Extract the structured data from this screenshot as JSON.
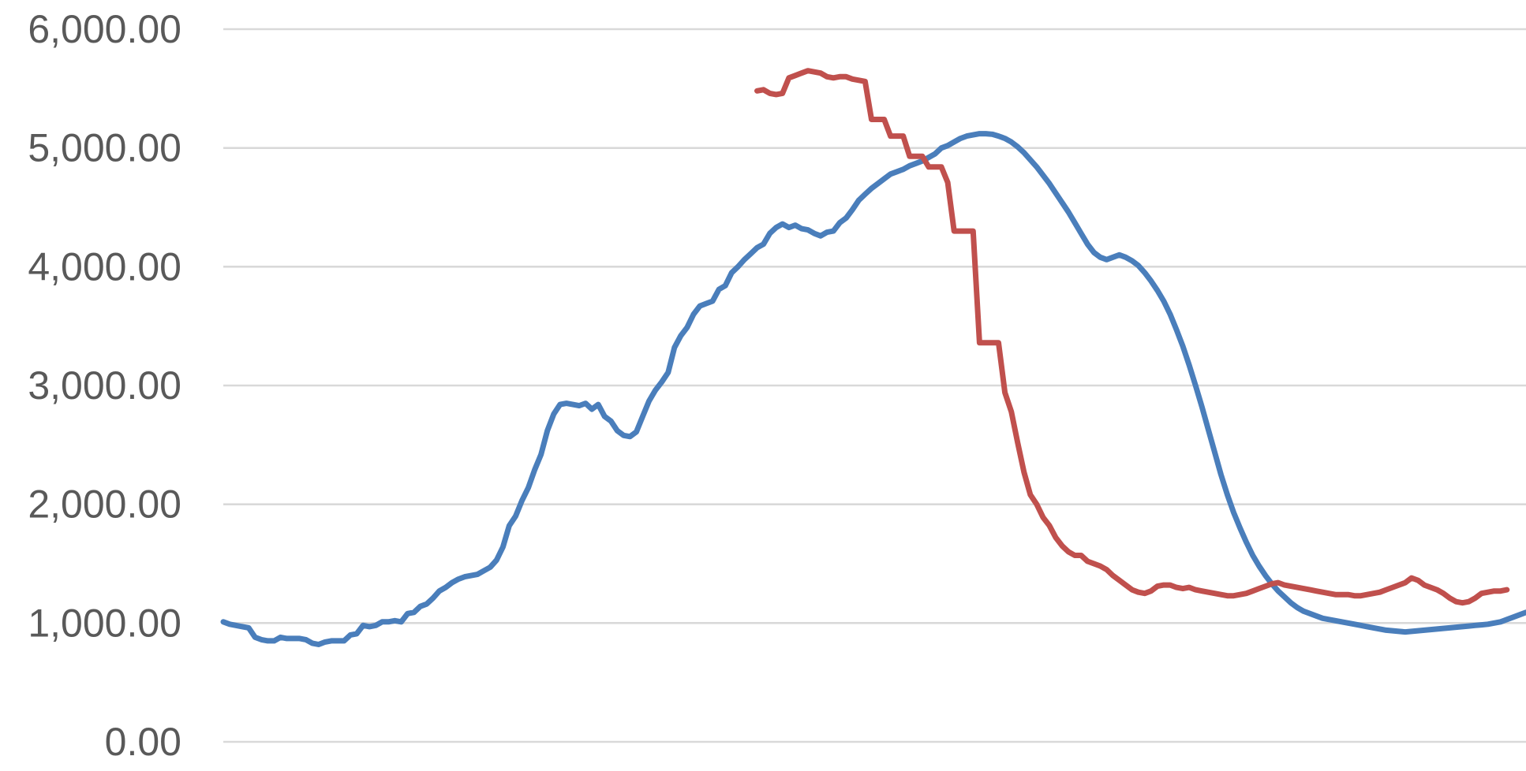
{
  "chart_data": {
    "type": "line",
    "title": "",
    "xlabel": "",
    "ylabel": "",
    "ylim": [
      0,
      6000
    ],
    "yticks": [
      0,
      1000,
      2000,
      3000,
      4000,
      5000,
      6000
    ],
    "ytick_labels": [
      "0.00",
      "1,000.00",
      "2,000.00",
      "3,000.00",
      "4,000.00",
      "5,000.00",
      "6,000.00"
    ],
    "grid": true,
    "legend": "none",
    "x_count": 206,
    "series": [
      {
        "color": "#4a7ebb",
        "points": [
          [
            0,
            1010
          ],
          [
            1,
            990
          ],
          [
            3,
            970
          ],
          [
            4,
            960
          ],
          [
            5,
            880
          ],
          [
            6,
            860
          ],
          [
            7,
            850
          ],
          [
            8,
            850
          ],
          [
            9,
            880
          ],
          [
            10,
            870
          ],
          [
            11,
            870
          ],
          [
            12,
            870
          ],
          [
            13,
            860
          ],
          [
            14,
            830
          ],
          [
            15,
            820
          ],
          [
            16,
            840
          ],
          [
            17,
            850
          ],
          [
            18,
            850
          ],
          [
            19,
            850
          ],
          [
            20,
            900
          ],
          [
            21,
            910
          ],
          [
            22,
            980
          ],
          [
            23,
            970
          ],
          [
            24,
            980
          ],
          [
            25,
            1010
          ],
          [
            26,
            1010
          ],
          [
            27,
            1020
          ],
          [
            28,
            1010
          ],
          [
            29,
            1080
          ],
          [
            30,
            1090
          ],
          [
            31,
            1140
          ],
          [
            32,
            1160
          ],
          [
            33,
            1210
          ],
          [
            34,
            1270
          ],
          [
            35,
            1300
          ],
          [
            36,
            1340
          ],
          [
            37,
            1370
          ],
          [
            38,
            1390
          ],
          [
            39,
            1400
          ],
          [
            40,
            1410
          ],
          [
            41,
            1440
          ],
          [
            42,
            1470
          ],
          [
            43,
            1530
          ],
          [
            44,
            1640
          ],
          [
            45,
            1820
          ],
          [
            46,
            1900
          ],
          [
            47,
            2030
          ],
          [
            48,
            2140
          ],
          [
            49,
            2290
          ],
          [
            50,
            2420
          ],
          [
            51,
            2620
          ],
          [
            52,
            2760
          ],
          [
            53,
            2840
          ],
          [
            54,
            2850
          ],
          [
            55,
            2840
          ],
          [
            56,
            2830
          ],
          [
            57,
            2850
          ],
          [
            58,
            2800
          ],
          [
            59,
            2840
          ],
          [
            60,
            2740
          ],
          [
            61,
            2700
          ],
          [
            62,
            2620
          ],
          [
            63,
            2580
          ],
          [
            64,
            2570
          ],
          [
            65,
            2610
          ],
          [
            66,
            2740
          ],
          [
            67,
            2870
          ],
          [
            68,
            2960
          ],
          [
            69,
            3030
          ],
          [
            70,
            3110
          ],
          [
            71,
            3320
          ],
          [
            72,
            3420
          ],
          [
            73,
            3490
          ],
          [
            74,
            3600
          ],
          [
            75,
            3670
          ],
          [
            76,
            3690
          ],
          [
            77,
            3710
          ],
          [
            78,
            3810
          ],
          [
            79,
            3840
          ],
          [
            80,
            3950
          ],
          [
            81,
            4000
          ],
          [
            82,
            4060
          ],
          [
            83,
            4110
          ],
          [
            84,
            4160
          ],
          [
            85,
            4190
          ],
          [
            86,
            4280
          ],
          [
            87,
            4330
          ],
          [
            88,
            4360
          ],
          [
            89,
            4330
          ],
          [
            90,
            4350
          ],
          [
            91,
            4320
          ],
          [
            92,
            4310
          ],
          [
            93,
            4280
          ],
          [
            94,
            4260
          ],
          [
            95,
            4290
          ],
          [
            96,
            4300
          ],
          [
            97,
            4370
          ],
          [
            98,
            4410
          ],
          [
            99,
            4480
          ],
          [
            100,
            4560
          ],
          [
            101,
            4610
          ],
          [
            102,
            4660
          ],
          [
            103,
            4700
          ],
          [
            104,
            4740
          ],
          [
            105,
            4780
          ],
          [
            106,
            4800
          ],
          [
            107,
            4820
          ],
          [
            108,
            4850
          ],
          [
            109,
            4870
          ],
          [
            110,
            4890
          ],
          [
            111,
            4920
          ],
          [
            112,
            4950
          ],
          [
            113,
            5000
          ],
          [
            114,
            5020
          ],
          [
            115,
            5050
          ],
          [
            116,
            5080
          ],
          [
            117,
            5100
          ],
          [
            118,
            5110
          ],
          [
            119,
            5120
          ],
          [
            120,
            5120
          ],
          [
            121,
            5115
          ],
          [
            122,
            5100
          ],
          [
            123,
            5080
          ],
          [
            124,
            5050
          ],
          [
            125,
            5010
          ],
          [
            126,
            4960
          ],
          [
            127,
            4900
          ],
          [
            128,
            4840
          ],
          [
            129,
            4770
          ],
          [
            130,
            4700
          ],
          [
            131,
            4620
          ],
          [
            132,
            4540
          ],
          [
            133,
            4460
          ],
          [
            134,
            4370
          ],
          [
            135,
            4280
          ],
          [
            136,
            4190
          ],
          [
            137,
            4120
          ],
          [
            138,
            4080
          ],
          [
            139,
            4060
          ],
          [
            140,
            4080
          ],
          [
            141,
            4100
          ],
          [
            142,
            4080
          ],
          [
            143,
            4050
          ],
          [
            144,
            4010
          ],
          [
            145,
            3950
          ],
          [
            146,
            3880
          ],
          [
            147,
            3800
          ],
          [
            148,
            3710
          ],
          [
            149,
            3600
          ],
          [
            150,
            3470
          ],
          [
            151,
            3330
          ],
          [
            152,
            3170
          ],
          [
            153,
            3000
          ],
          [
            154,
            2820
          ],
          [
            155,
            2630
          ],
          [
            156,
            2440
          ],
          [
            157,
            2250
          ],
          [
            158,
            2080
          ],
          [
            159,
            1930
          ],
          [
            160,
            1800
          ],
          [
            161,
            1680
          ],
          [
            162,
            1570
          ],
          [
            163,
            1480
          ],
          [
            164,
            1400
          ],
          [
            165,
            1330
          ],
          [
            166,
            1270
          ],
          [
            167,
            1220
          ],
          [
            168,
            1170
          ],
          [
            169,
            1130
          ],
          [
            170,
            1100
          ],
          [
            171,
            1080
          ],
          [
            172,
            1060
          ],
          [
            173,
            1040
          ],
          [
            174,
            1030
          ],
          [
            175,
            1020
          ],
          [
            176,
            1010
          ],
          [
            177,
            1000
          ],
          [
            178,
            990
          ],
          [
            179,
            980
          ],
          [
            180,
            970
          ],
          [
            181,
            960
          ],
          [
            182,
            950
          ],
          [
            183,
            940
          ],
          [
            184,
            935
          ],
          [
            185,
            930
          ],
          [
            186,
            925
          ],
          [
            187,
            930
          ],
          [
            188,
            935
          ],
          [
            189,
            940
          ],
          [
            190,
            945
          ],
          [
            191,
            950
          ],
          [
            192,
            955
          ],
          [
            193,
            960
          ],
          [
            194,
            965
          ],
          [
            195,
            970
          ],
          [
            196,
            975
          ],
          [
            197,
            980
          ],
          [
            198,
            985
          ],
          [
            199,
            990
          ],
          [
            200,
            1000
          ],
          [
            201,
            1010
          ],
          [
            202,
            1030
          ],
          [
            203,
            1050
          ],
          [
            204,
            1070
          ],
          [
            205,
            1090
          ]
        ]
      },
      {
        "color": "#c0504d",
        "points": [
          [
            84,
            5480
          ],
          [
            85,
            5490
          ],
          [
            86,
            5460
          ],
          [
            87,
            5450
          ],
          [
            88,
            5460
          ],
          [
            89,
            5590
          ],
          [
            90,
            5610
          ],
          [
            91,
            5630
          ],
          [
            92,
            5650
          ],
          [
            93,
            5640
          ],
          [
            94,
            5630
          ],
          [
            95,
            5600
          ],
          [
            96,
            5590
          ],
          [
            97,
            5600
          ],
          [
            98,
            5600
          ],
          [
            99,
            5580
          ],
          [
            100,
            5570
          ],
          [
            101,
            5560
          ],
          [
            102,
            5240
          ],
          [
            103,
            5240
          ],
          [
            104,
            5240
          ],
          [
            105,
            5100
          ],
          [
            106,
            5100
          ],
          [
            107,
            5100
          ],
          [
            108,
            4930
          ],
          [
            109,
            4930
          ],
          [
            110,
            4930
          ],
          [
            111,
            4840
          ],
          [
            112,
            4840
          ],
          [
            113,
            4840
          ],
          [
            114,
            4710
          ],
          [
            115,
            4300
          ],
          [
            116,
            4300
          ],
          [
            117,
            4300
          ],
          [
            118,
            4300
          ],
          [
            119,
            3360
          ],
          [
            120,
            3360
          ],
          [
            121,
            3360
          ],
          [
            122,
            3360
          ],
          [
            123,
            2940
          ],
          [
            124,
            2780
          ],
          [
            125,
            2520
          ],
          [
            126,
            2270
          ],
          [
            127,
            2080
          ],
          [
            128,
            2000
          ],
          [
            129,
            1890
          ],
          [
            130,
            1820
          ],
          [
            131,
            1720
          ],
          [
            132,
            1650
          ],
          [
            133,
            1600
          ],
          [
            134,
            1570
          ],
          [
            135,
            1570
          ],
          [
            136,
            1520
          ],
          [
            137,
            1500
          ],
          [
            138,
            1480
          ],
          [
            139,
            1450
          ],
          [
            140,
            1400
          ],
          [
            141,
            1360
          ],
          [
            142,
            1320
          ],
          [
            143,
            1280
          ],
          [
            144,
            1260
          ],
          [
            145,
            1250
          ],
          [
            146,
            1270
          ],
          [
            147,
            1310
          ],
          [
            148,
            1320
          ],
          [
            149,
            1320
          ],
          [
            150,
            1300
          ],
          [
            151,
            1290
          ],
          [
            152,
            1300
          ],
          [
            153,
            1280
          ],
          [
            154,
            1270
          ],
          [
            155,
            1260
          ],
          [
            156,
            1250
          ],
          [
            157,
            1240
          ],
          [
            158,
            1230
          ],
          [
            159,
            1230
          ],
          [
            160,
            1240
          ],
          [
            161,
            1250
          ],
          [
            162,
            1270
          ],
          [
            163,
            1290
          ],
          [
            164,
            1310
          ],
          [
            165,
            1330
          ],
          [
            166,
            1340
          ],
          [
            167,
            1320
          ],
          [
            168,
            1310
          ],
          [
            169,
            1300
          ],
          [
            170,
            1290
          ],
          [
            171,
            1280
          ],
          [
            172,
            1270
          ],
          [
            173,
            1260
          ],
          [
            174,
            1250
          ],
          [
            175,
            1240
          ],
          [
            176,
            1240
          ],
          [
            177,
            1240
          ],
          [
            178,
            1230
          ],
          [
            179,
            1230
          ],
          [
            180,
            1240
          ],
          [
            181,
            1250
          ],
          [
            182,
            1260
          ],
          [
            183,
            1280
          ],
          [
            184,
            1300
          ],
          [
            185,
            1320
          ],
          [
            186,
            1340
          ],
          [
            187,
            1380
          ],
          [
            188,
            1360
          ],
          [
            189,
            1320
          ],
          [
            190,
            1300
          ],
          [
            191,
            1280
          ],
          [
            192,
            1250
          ],
          [
            193,
            1210
          ],
          [
            194,
            1180
          ],
          [
            195,
            1170
          ],
          [
            196,
            1180
          ],
          [
            197,
            1210
          ],
          [
            198,
            1250
          ],
          [
            199,
            1260
          ],
          [
            200,
            1270
          ],
          [
            201,
            1270
          ],
          [
            202,
            1280
          ]
        ]
      }
    ]
  }
}
